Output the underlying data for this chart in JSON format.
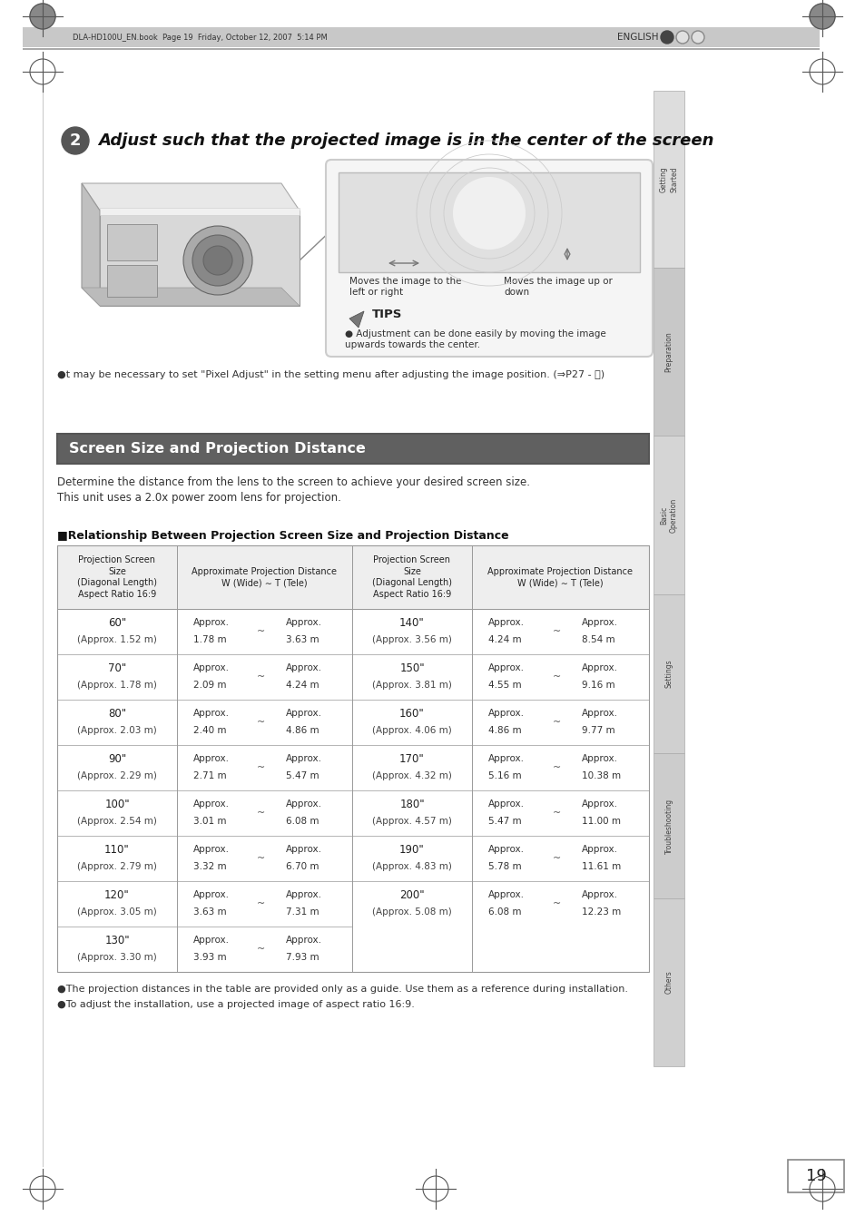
{
  "page_title": "DLA-HD100U_EN.book  Page 19  Friday, October 12, 2007  5:14 PM",
  "english_label": "ENGLISH",
  "section_heading": "Screen Size and Projection Distance",
  "step_number": "2",
  "step_text": "Adjust such that the projected image is in the center of the screen",
  "tips_title": "TIPS",
  "tips_text": "Adjustment can be done easily by moving the image\nupwards towards the center.",
  "caption_left": "Moves the image to the\nleft or right",
  "caption_right": "Moves the image up or\ndown",
  "bullet1": "It may be necessary to set \"Pixel Adjust\" in the setting menu after adjusting the image position. (⇒P27 - ⓝ)",
  "describe1": "Determine the distance from the lens to the screen to achieve your desired screen size.",
  "describe2": "This unit uses a 2.0x power zoom lens for projection.",
  "relationship_title": "■Relationship Between Projection Screen Size and Projection Distance",
  "col_header1a": "Projection Screen\nSize\n(Diagonal Length)\nAspect Ratio 16:9",
  "col_header1b": "Approximate Projection Distance\nW (Wide) ∼ T (Tele)",
  "col_header2a": "Projection Screen\nSize\n(Diagonal Length)\nAspect Ratio 16:9",
  "col_header2b": "Approximate Projection Distance\nW (Wide) ∼ T (Tele)",
  "table_left": [
    [
      "60\"",
      "(Approx. 1.52 m)",
      "Approx.",
      "1.78 m",
      "~",
      "Approx.",
      "3.63 m"
    ],
    [
      "70\"",
      "(Approx. 1.78 m)",
      "Approx.",
      "2.09 m",
      "~",
      "Approx.",
      "4.24 m"
    ],
    [
      "80\"",
      "(Approx. 2.03 m)",
      "Approx.",
      "2.40 m",
      "~",
      "Approx.",
      "4.86 m"
    ],
    [
      "90\"",
      "(Approx. 2.29 m)",
      "Approx.",
      "2.71 m",
      "~",
      "Approx.",
      "5.47 m"
    ],
    [
      "100\"",
      "(Approx. 2.54 m)",
      "Approx.",
      "3.01 m",
      "~",
      "Approx.",
      "6.08 m"
    ],
    [
      "110\"",
      "(Approx. 2.79 m)",
      "Approx.",
      "3.32 m",
      "~",
      "Approx.",
      "6.70 m"
    ],
    [
      "120\"",
      "(Approx. 3.05 m)",
      "Approx.",
      "3.63 m",
      "~",
      "Approx.",
      "7.31 m"
    ],
    [
      "130\"",
      "(Approx. 3.30 m)",
      "Approx.",
      "3.93 m",
      "~",
      "Approx.",
      "7.93 m"
    ]
  ],
  "table_right": [
    [
      "140\"",
      "(Approx. 3.56 m)",
      "Approx.",
      "4.24 m",
      "~",
      "Approx.",
      "8.54 m"
    ],
    [
      "150\"",
      "(Approx. 3.81 m)",
      "Approx.",
      "4.55 m",
      "~",
      "Approx.",
      "9.16 m"
    ],
    [
      "160\"",
      "(Approx. 4.06 m)",
      "Approx.",
      "4.86 m",
      "~",
      "Approx.",
      "9.77 m"
    ],
    [
      "170\"",
      "(Approx. 4.32 m)",
      "Approx.",
      "5.16 m",
      "~",
      "Approx.",
      "10.38 m"
    ],
    [
      "180\"",
      "(Approx. 4.57 m)",
      "Approx.",
      "5.47 m",
      "~",
      "Approx.",
      "11.00 m"
    ],
    [
      "190\"",
      "(Approx. 4.83 m)",
      "Approx.",
      "5.78 m",
      "~",
      "Approx.",
      "11.61 m"
    ],
    [
      "200\"",
      "(Approx. 5.08 m)",
      "Approx.",
      "6.08 m",
      "~",
      "Approx.",
      "12.23 m"
    ]
  ],
  "footnote1": "●The projection distances in the table are provided only as a guide. Use them as a reference during installation.",
  "footnote2": "●To adjust the installation, use a projected image of aspect ratio 16:9.",
  "page_number": "19",
  "sidebar_labels": [
    "Getting\nStarted",
    "Preparation",
    "Basic\nOperation",
    "Settings",
    "Troubleshooting",
    "Others"
  ],
  "bg_color": "#ffffff",
  "header_bar_color": "#c0c0c0",
  "section_header_color": "#606060",
  "table_header_bg": "#eeeeee",
  "table_border_color": "#999999",
  "sidebar_bg": "#d0d0d0",
  "tips_box_bg": "#f5f5f5",
  "tips_box_border": "#bbbbbb"
}
